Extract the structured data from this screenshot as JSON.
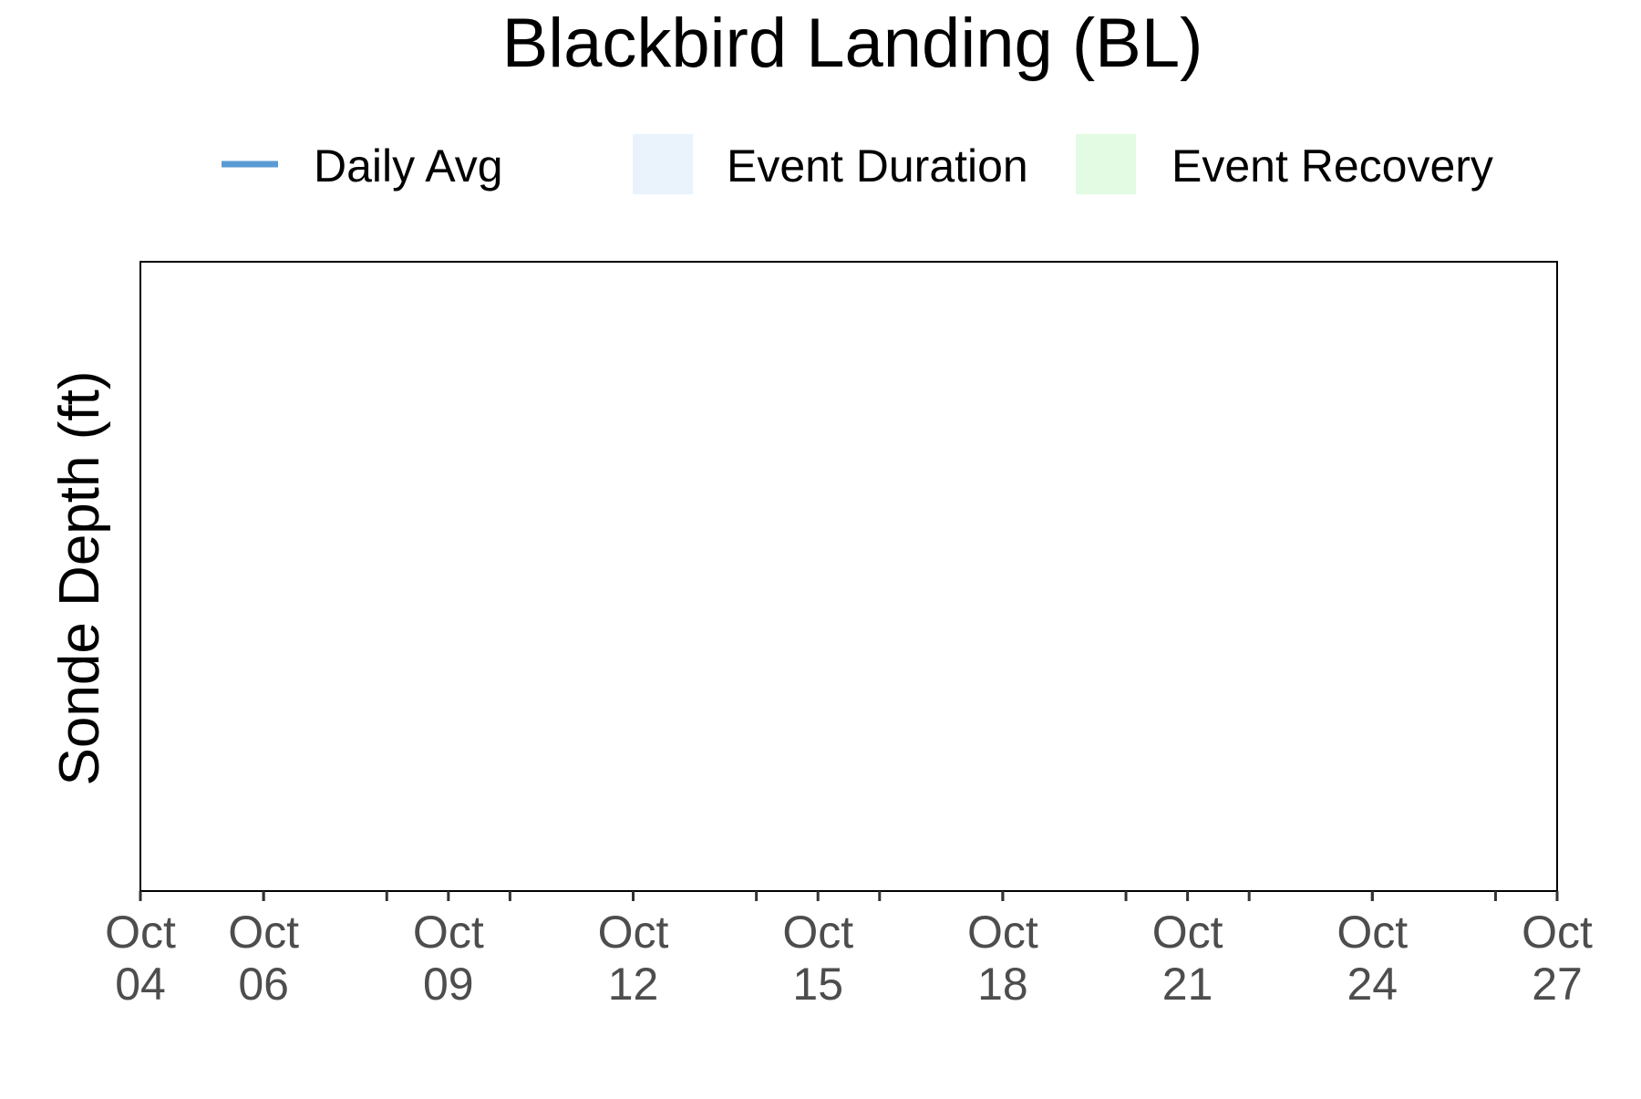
{
  "chart_data": {
    "type": "line",
    "title": "Blackbird Landing (BL)",
    "xlabel": "",
    "ylabel": "Sonde Depth (ft)",
    "x_axis": {
      "type": "date",
      "range": [
        "Oct 04",
        "Oct 27"
      ],
      "major_ticks": [
        {
          "month": "Oct",
          "day": "04"
        },
        {
          "month": "Oct",
          "day": "06"
        },
        {
          "month": "Oct",
          "day": "09"
        },
        {
          "month": "Oct",
          "day": "12"
        },
        {
          "month": "Oct",
          "day": "15"
        },
        {
          "month": "Oct",
          "day": "18"
        },
        {
          "month": "Oct",
          "day": "21"
        },
        {
          "month": "Oct",
          "day": "24"
        },
        {
          "month": "Oct",
          "day": "27"
        }
      ],
      "minor_tick_every_days": 1
    },
    "y_axis": {
      "tick_labels": []
    },
    "legend": {
      "placement": "top",
      "entries": [
        {
          "label": "Daily Avg",
          "kind": "line",
          "color": "#5B9BD5"
        },
        {
          "label": "Event Duration",
          "kind": "fill",
          "color": "#EAF2FB"
        },
        {
          "label": "Event Recovery",
          "kind": "fill",
          "color": "#E2FBE2"
        }
      ]
    },
    "series": [
      {
        "name": "Daily Avg",
        "color": "#5B9BD5",
        "x": [],
        "y": []
      }
    ],
    "grid": false
  }
}
